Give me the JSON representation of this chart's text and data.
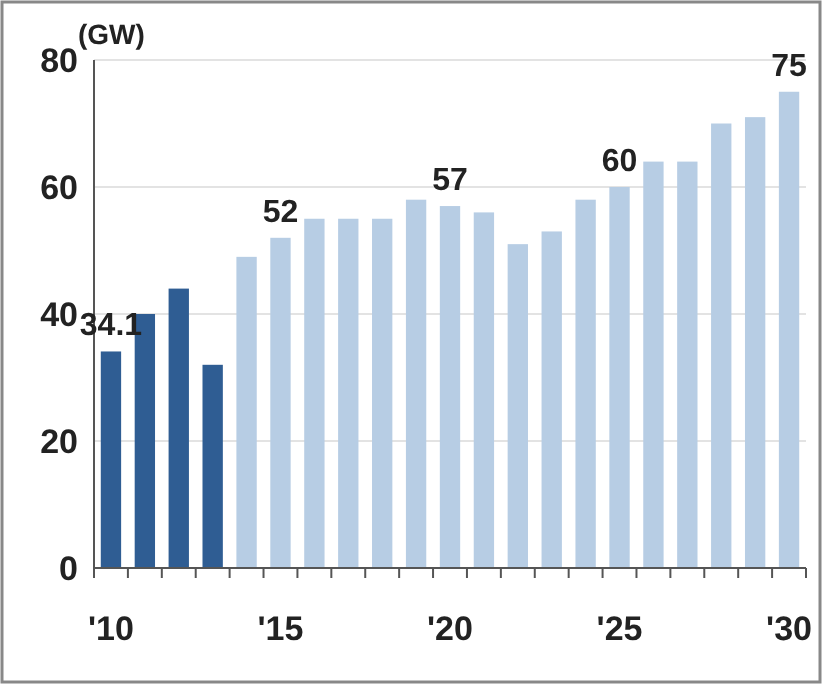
{
  "chart_data": {
    "type": "bar",
    "ylabel": "(GW)",
    "categories": [
      "'10",
      null,
      null,
      null,
      null,
      "'15",
      null,
      null,
      null,
      null,
      "'20",
      null,
      null,
      null,
      null,
      "'25",
      null,
      null,
      null,
      null,
      "'30"
    ],
    "values": [
      34.1,
      40,
      44,
      32,
      49,
      52,
      55,
      55,
      55,
      58,
      57,
      56,
      51,
      53,
      58,
      60,
      64,
      64,
      70,
      71,
      75
    ],
    "colors": [
      "#2f5d93",
      "#2f5d93",
      "#2f5d93",
      "#2f5d93",
      "#b7cde4",
      "#b7cde4",
      "#b7cde4",
      "#b7cde4",
      "#b7cde4",
      "#b7cde4",
      "#b7cde4",
      "#b7cde4",
      "#b7cde4",
      "#b7cde4",
      "#b7cde4",
      "#b7cde4",
      "#b7cde4",
      "#b7cde4",
      "#b7cde4",
      "#b7cde4",
      "#b7cde4"
    ],
    "value_labels": [
      "34.1",
      null,
      null,
      null,
      null,
      "52",
      null,
      null,
      null,
      null,
      "57",
      null,
      null,
      null,
      null,
      "60",
      null,
      null,
      null,
      null,
      "75"
    ],
    "ylim": [
      0,
      80
    ],
    "yticks": [
      0,
      20,
      40,
      60,
      80
    ],
    "grid": "y"
  }
}
